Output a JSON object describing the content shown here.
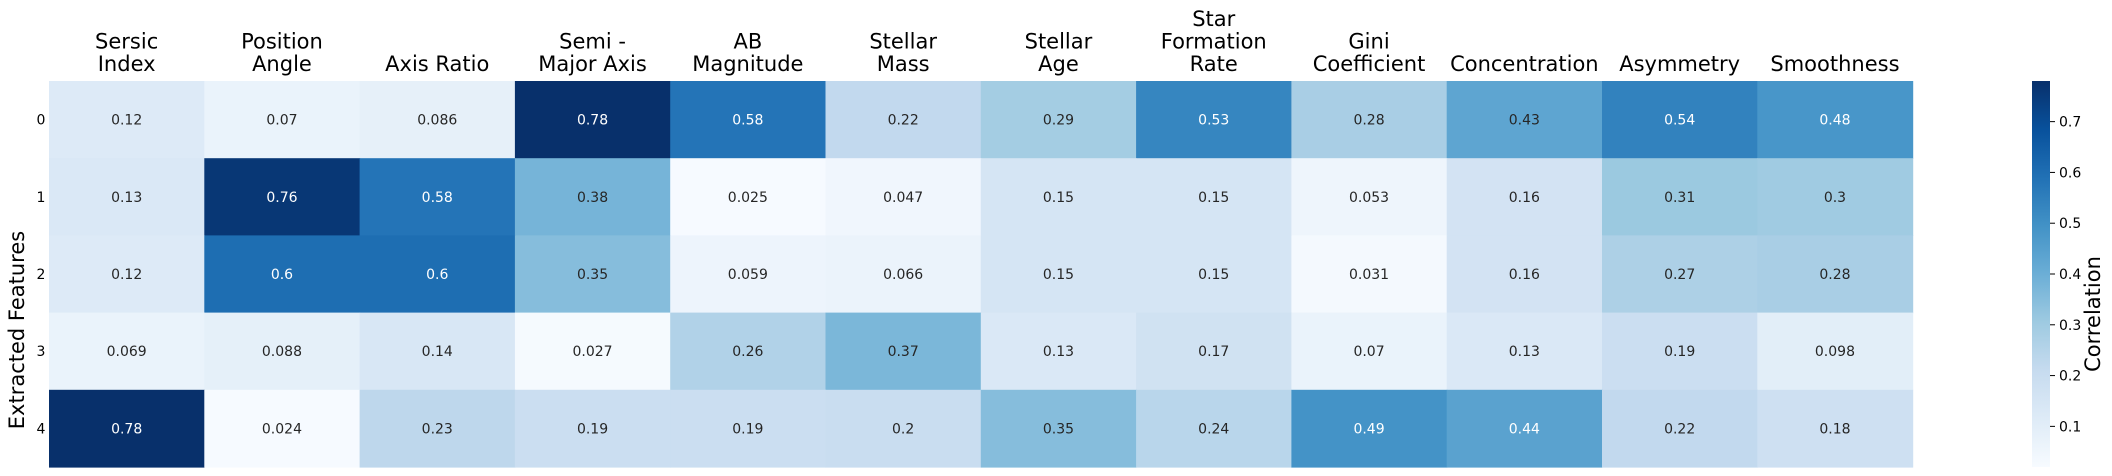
{
  "chart_data": {
    "type": "heatmap",
    "title": "",
    "ylabel": "Extracted Features",
    "colorbar_label": "Correlation",
    "columns": [
      [
        "Sersic",
        "Index"
      ],
      [
        "Position",
        "Angle"
      ],
      [
        "Axis Ratio"
      ],
      [
        "Semi -",
        "Major Axis"
      ],
      [
        "AB",
        "Magnitude"
      ],
      [
        "Stellar",
        "Mass"
      ],
      [
        "Stellar",
        "Age"
      ],
      [
        "Star",
        "Formation",
        "Rate"
      ],
      [
        "Gini",
        "Coefficient"
      ],
      [
        "Concentration"
      ],
      [
        "Asymmetry"
      ],
      [
        "Smoothness"
      ]
    ],
    "rows": [
      "0",
      "1",
      "2",
      "3",
      "4"
    ],
    "values": [
      [
        0.12,
        0.07,
        0.086,
        0.78,
        0.58,
        0.22,
        0.29,
        0.53,
        0.28,
        0.43,
        0.54,
        0.48
      ],
      [
        0.13,
        0.76,
        0.58,
        0.38,
        0.025,
        0.047,
        0.15,
        0.15,
        0.053,
        0.16,
        0.31,
        0.3
      ],
      [
        0.12,
        0.6,
        0.6,
        0.35,
        0.059,
        0.066,
        0.15,
        0.15,
        0.031,
        0.16,
        0.27,
        0.28
      ],
      [
        0.069,
        0.088,
        0.14,
        0.027,
        0.26,
        0.37,
        0.13,
        0.17,
        0.07,
        0.13,
        0.19,
        0.098
      ],
      [
        0.78,
        0.024,
        0.23,
        0.19,
        0.19,
        0.2,
        0.35,
        0.24,
        0.49,
        0.44,
        0.22,
        0.18
      ]
    ],
    "value_labels": [
      [
        "0.12",
        "0.07",
        "0.086",
        "0.78",
        "0.58",
        "0.22",
        "0.29",
        "0.53",
        "0.28",
        "0.43",
        "0.54",
        "0.48"
      ],
      [
        "0.13",
        "0.76",
        "0.58",
        "0.38",
        "0.025",
        "0.047",
        "0.15",
        "0.15",
        "0.053",
        "0.16",
        "0.31",
        "0.3"
      ],
      [
        "0.12",
        "0.6",
        "0.6",
        "0.35",
        "0.059",
        "0.066",
        "0.15",
        "0.15",
        "0.031",
        "0.16",
        "0.27",
        "0.28"
      ],
      [
        "0.069",
        "0.088",
        "0.14",
        "0.027",
        "0.26",
        "0.37",
        "0.13",
        "0.17",
        "0.07",
        "0.13",
        "0.19",
        "0.098"
      ],
      [
        "0.78",
        "0.024",
        "0.23",
        "0.19",
        "0.19",
        "0.2",
        "0.35",
        "0.24",
        "0.49",
        "0.44",
        "0.22",
        "0.18"
      ]
    ],
    "colorbar": {
      "vmin": 0.02,
      "vmax": 0.78,
      "ticks": [
        0.1,
        0.2,
        0.3,
        0.4,
        0.5,
        0.6,
        0.7
      ],
      "tick_labels": [
        "0.1",
        "0.2",
        "0.3",
        "0.4",
        "0.5",
        "0.6",
        "0.7"
      ]
    },
    "colormap": "Blues",
    "colors": [
      "#f7fbff",
      "#deebf7",
      "#c6dbef",
      "#9ecae1",
      "#6baed6",
      "#4292c6",
      "#2171b5",
      "#08519c",
      "#08306b"
    ]
  }
}
